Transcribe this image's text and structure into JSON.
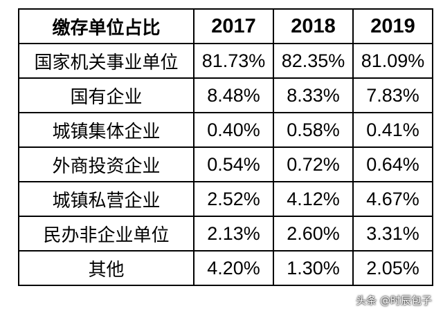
{
  "table": {
    "headers": [
      "缴存单位占比",
      "2017",
      "2018",
      "2019"
    ],
    "rows": [
      [
        "国家机关事业单位",
        "81.73%",
        "82.35%",
        "81.09%"
      ],
      [
        "国有企业",
        "8.48%",
        "8.33%",
        "7.83%"
      ],
      [
        "城镇集体企业",
        "0.40%",
        "0.58%",
        "0.41%"
      ],
      [
        "外商投资企业",
        "0.54%",
        "0.72%",
        "0.64%"
      ],
      [
        "城镇私营企业",
        "2.52%",
        "4.12%",
        "4.67%"
      ],
      [
        "民办非企业单位",
        "2.13%",
        "2.60%",
        "3.31%"
      ],
      [
        "其他",
        "4.20%",
        "1.30%",
        "2.05%"
      ]
    ]
  },
  "watermark": "头条 @时辰包子"
}
